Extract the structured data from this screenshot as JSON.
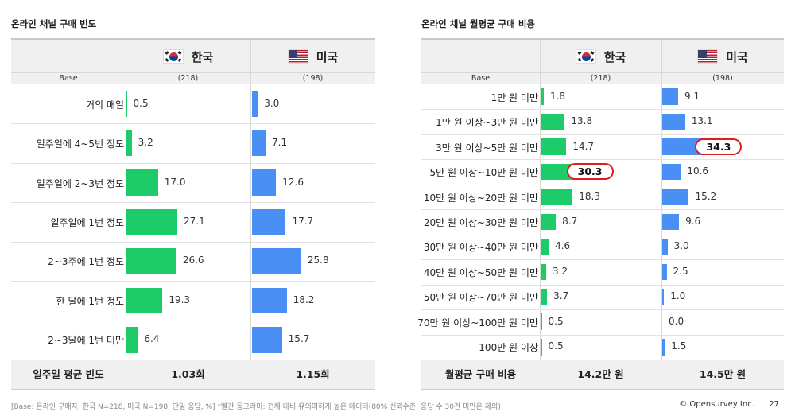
{
  "left": {
    "title": "온라인 채널 구매 빈도",
    "header": {
      "kr": "한국",
      "us": "미국",
      "base_label": "Base",
      "kr_base": "(218)",
      "us_base": "(198)"
    },
    "footer": {
      "label": "일주일 평균 빈도",
      "kr": "1.03회",
      "us": "1.15회"
    }
  },
  "right": {
    "title": "온라인 채널 월평균 구매 비용",
    "header": {
      "kr": "한국",
      "us": "미국",
      "base_label": "Base",
      "kr_base": "(218)",
      "us_base": "(198)"
    },
    "footer": {
      "label": "월평균 구매 비용",
      "kr": "14.2만 원",
      "us": "14.5만 원"
    }
  },
  "chart_data": [
    {
      "type": "bar",
      "orientation": "horizontal",
      "title": "온라인 채널 구매 빈도",
      "categories": [
        "거의 매일",
        "일주일에 4~5번 정도",
        "일주일에 2~3번 정도",
        "일주일에 1번 정도",
        "2~3주에 1번 정도",
        "한 달에 1번 정도",
        "2~3달에 1번 미만"
      ],
      "series": [
        {
          "name": "한국",
          "color": "#1ecb69",
          "values": [
            0.5,
            3.2,
            17.0,
            27.1,
            26.6,
            19.3,
            6.4
          ],
          "labels": [
            "0.5",
            "3.2",
            "17.0",
            "27.1",
            "26.6",
            "19.3",
            "6.4"
          ],
          "highlight": []
        },
        {
          "name": "미국",
          "color": "#4a8ff3",
          "values": [
            3.0,
            7.1,
            12.6,
            17.7,
            25.8,
            18.2,
            15.7
          ],
          "labels": [
            "3.0",
            "7.1",
            "12.6",
            "17.7",
            "25.8",
            "18.2",
            "15.7"
          ],
          "highlight": []
        }
      ],
      "xlim": [
        0,
        40
      ]
    },
    {
      "type": "bar",
      "orientation": "horizontal",
      "title": "온라인 채널 월평균 구매 비용",
      "categories": [
        "1만 원 미만",
        "1만 원 이상~3만 원 미만",
        "3만 원 이상~5만 원 미만",
        "5만 원 이상~10만 원 미만",
        "10만 원 이상~20만 원 미만",
        "20만 원 이상~30만 원 미만",
        "30만 원 이상~40만 원 미만",
        "40만 원 이상~50만 원 미만",
        "50만 원 이상~70만 원 미만",
        "70만 원 이상~100만 원 미만",
        "100만 원 이상"
      ],
      "series": [
        {
          "name": "한국",
          "color": "#1ecb69",
          "values": [
            1.8,
            13.8,
            14.7,
            30.3,
            18.3,
            8.7,
            4.6,
            3.2,
            3.7,
            0.5,
            0.5
          ],
          "labels": [
            "1.8",
            "13.8",
            "14.7",
            "30.3",
            "18.3",
            "8.7",
            "4.6",
            "3.2",
            "3.7",
            "0.5",
            "0.5"
          ],
          "highlight": [
            3
          ]
        },
        {
          "name": "미국",
          "color": "#4a8ff3",
          "values": [
            9.1,
            13.1,
            34.3,
            10.6,
            15.2,
            9.6,
            3.0,
            2.5,
            1.0,
            0.0,
            1.5
          ],
          "labels": [
            "9.1",
            "13.1",
            "34.3",
            "10.6",
            "15.2",
            "9.6",
            "3.0",
            "2.5",
            "1.0",
            "0.0",
            "1.5"
          ],
          "highlight": [
            2
          ]
        }
      ],
      "xlim": [
        0,
        50
      ]
    }
  ],
  "footnote": "[Base: 온라인 구매자, 한국 N=218, 미국 N=198, 단일 응답, %] *빨간 동그라미: 전체 대비 유의미하게 높은 데이터(80% 신뢰수준, 응답 수 30건 미만은 제외)",
  "copyright": "© Opensurvey Inc.",
  "page_number": "27"
}
